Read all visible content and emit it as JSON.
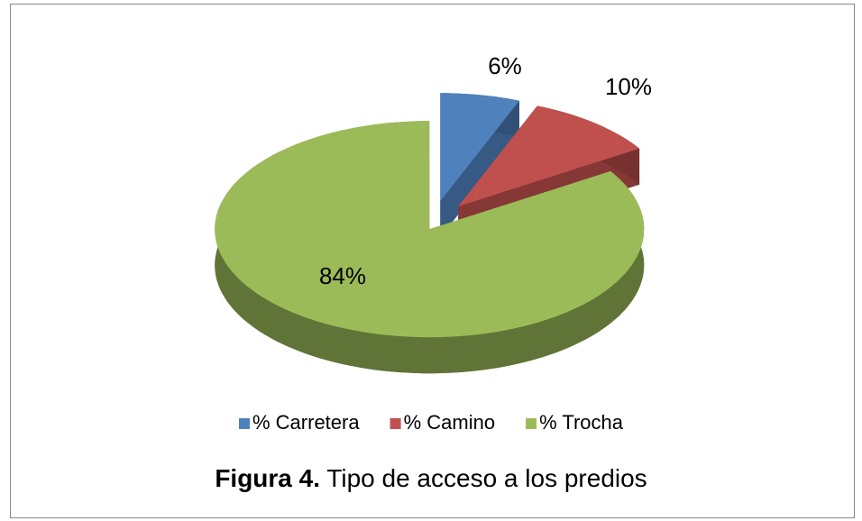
{
  "chart_data": {
    "type": "pie",
    "three_d": true,
    "categories": [
      "% Carretera",
      "% Camino",
      "% Trocha"
    ],
    "values": [
      6,
      10,
      84
    ],
    "value_labels": [
      "6%",
      "10%",
      "84%"
    ],
    "colors": [
      "#4f81bd",
      "#c0504d",
      "#9bbb59"
    ],
    "legend": "bottom",
    "figure_label": "Figura 4.",
    "title": "Tipo de acceso a los predios"
  }
}
